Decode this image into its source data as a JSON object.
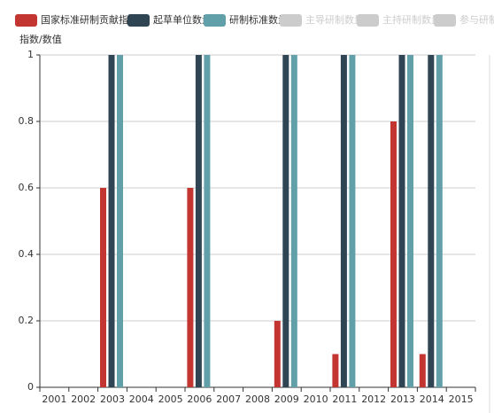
{
  "chart_data": {
    "type": "bar",
    "y_axis_label": "指数/数值",
    "categories": [
      "2001",
      "2002",
      "2003",
      "2004",
      "2005",
      "2006",
      "2007",
      "2008",
      "2009",
      "2010",
      "2011",
      "2012",
      "2013",
      "2014",
      "2015"
    ],
    "series": [
      {
        "name": "国家标准研制贡献指数",
        "color": "#c23531",
        "values": [
          0,
          0,
          0.6,
          0,
          0,
          0.6,
          0,
          0,
          0.2,
          0,
          0.1,
          0,
          0.8,
          0.1,
          0
        ]
      },
      {
        "name": "起草单位数量",
        "color": "#2f4554",
        "values": [
          0,
          0,
          1,
          0,
          0,
          1,
          0,
          0,
          1,
          0,
          1,
          0,
          1,
          1,
          0
        ]
      },
      {
        "name": "研制标准数量",
        "color": "#61a0a8",
        "values": [
          0,
          0,
          1,
          0,
          0,
          1,
          0,
          0,
          1,
          0,
          1,
          0,
          1,
          1,
          0
        ]
      },
      {
        "name": "主导研制数量",
        "color": "#ccc",
        "hidden": true,
        "values": [
          null,
          null,
          null,
          null,
          null,
          null,
          null,
          null,
          null,
          null,
          null,
          null,
          null,
          null,
          null
        ]
      },
      {
        "name": "主持研制数量",
        "color": "#ccc",
        "hidden": true,
        "values": [
          null,
          null,
          null,
          null,
          null,
          null,
          null,
          null,
          null,
          null,
          null,
          null,
          null,
          null,
          null
        ]
      },
      {
        "name": "参与研制数量",
        "color": "#ccc",
        "hidden": true,
        "values": [
          null,
          null,
          null,
          null,
          null,
          null,
          null,
          null,
          null,
          null,
          null,
          null,
          null,
          null,
          null
        ]
      }
    ],
    "ylim": [
      0,
      1
    ],
    "yticks": [
      0,
      0.2,
      0.4,
      0.6,
      0.8,
      1
    ],
    "grid": true,
    "legend": "top-left"
  }
}
